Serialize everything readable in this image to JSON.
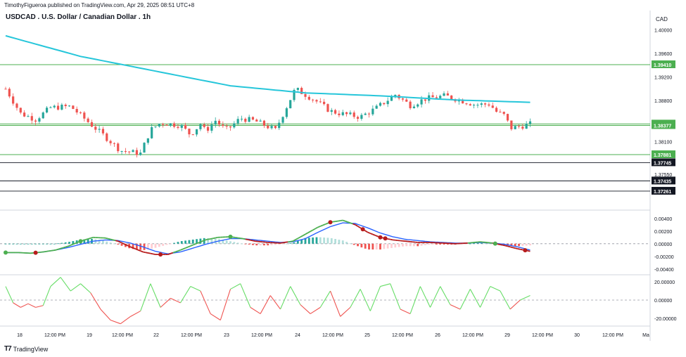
{
  "header": {
    "publisher": "TimothyFigueroa published on TradingView.com, Apr 29, 2025 08:51 UTC+8",
    "symbol": "USDCAD . U.S. Dollar / Canadian Dollar . 1h",
    "currency": "CAD"
  },
  "footer": {
    "brand": "TradingView"
  },
  "chart_data": [
    {
      "type": "candlestick",
      "title": "USDCAD . U.S. Dollar / Canadian Dollar . 1h",
      "ylim": [
        1.3695,
        1.4015
      ],
      "y_ticks": [
        "1.40000",
        "1.39600",
        "1.39200",
        "1.38800",
        "1.38100",
        "1.37550"
      ],
      "x_ticks": [
        "18",
        "12:00 PM",
        "19",
        "12:00 PM",
        "22",
        "12:00 PM",
        "23",
        "12:00 PM",
        "24",
        "12:00 PM",
        "25",
        "12:00 PM",
        "26",
        "12:00 PM",
        "29",
        "12:00 PM",
        "30",
        "12:00 PM",
        "Ma"
      ],
      "colors": {
        "up": "#26a69a",
        "down": "#ef5350",
        "ma": "#26c6da",
        "level_green": "#4caf50",
        "level_black": "#131722"
      },
      "candle_count": 140,
      "close_anchors": [
        [
          0,
          1.39
        ],
        [
          6,
          1.3858
        ],
        [
          12,
          1.3848
        ],
        [
          18,
          1.3868
        ],
        [
          26,
          1.387
        ],
        [
          34,
          1.384
        ],
        [
          40,
          1.3818
        ],
        [
          46,
          1.3795
        ],
        [
          54,
          1.379
        ],
        [
          58,
          1.383
        ],
        [
          62,
          1.3842
        ],
        [
          70,
          1.3838
        ],
        [
          74,
          1.3822
        ],
        [
          78,
          1.384
        ],
        [
          80,
          1.3828
        ],
        [
          84,
          1.3846
        ],
        [
          88,
          1.383
        ],
        [
          90,
          1.3835
        ],
        [
          94,
          1.385
        ],
        [
          100,
          1.3845
        ],
        [
          108,
          1.383
        ],
        [
          112,
          1.3865
        ],
        [
          116,
          1.39
        ],
        [
          124,
          1.388
        ],
        [
          130,
          1.3862
        ],
        [
          134,
          1.3858
        ],
        [
          142,
          1.3852
        ],
        [
          148,
          1.3866
        ],
        [
          156,
          1.389
        ],
        [
          162,
          1.3872
        ],
        [
          168,
          1.3883
        ],
        [
          176,
          1.3888
        ],
        [
          184,
          1.3878
        ],
        [
          188,
          1.3873
        ],
        [
          194,
          1.3874
        ],
        [
          196,
          1.3862
        ],
        [
          200,
          1.3854
        ],
        [
          202,
          1.3833
        ],
        [
          206,
          1.3836
        ],
        [
          210,
          1.384
        ]
      ],
      "moving_average": [
        [
          0,
          1.399
        ],
        [
          30,
          1.3955
        ],
        [
          60,
          1.393
        ],
        [
          90,
          1.3905
        ],
        [
          120,
          1.3893
        ],
        [
          150,
          1.3888
        ],
        [
          180,
          1.3881
        ],
        [
          210,
          1.3877
        ]
      ],
      "levels": [
        {
          "label": "1.39410",
          "value": 1.3941,
          "color": "green"
        },
        {
          "label": "1.38402",
          "value": 1.38402,
          "color": "green"
        },
        {
          "label": "1.38377",
          "value": 1.38377,
          "color": "green"
        },
        {
          "label": "1.37881",
          "value": 1.37881,
          "color": "green"
        },
        {
          "label": "1.37745",
          "value": 1.37745,
          "color": "black"
        },
        {
          "label": "1.37435",
          "value": 1.37435,
          "color": "black"
        },
        {
          "label": "1.37261",
          "value": 1.37261,
          "color": "black"
        }
      ]
    },
    {
      "type": "histogram+line",
      "y_ticks": [
        "0.00400",
        "0.00200",
        "0.00000",
        "-0.00200",
        "-0.00400"
      ],
      "ylim": [
        -0.0048,
        0.0052
      ],
      "series": [
        {
          "color": "#4caf50",
          "values": [
            [
              0,
              -0.0014
            ],
            [
              5,
              -0.0014
            ],
            [
              10,
              -0.0015
            ],
            [
              15,
              -0.0013
            ],
            [
              20,
              -0.001
            ],
            [
              25,
              -0.0004
            ],
            [
              30,
              0.0004
            ],
            [
              35,
              0.001
            ],
            [
              40,
              0.0009
            ],
            [
              45,
              0.0004
            ],
            [
              50,
              -0.0005
            ],
            [
              55,
              -0.0013
            ],
            [
              60,
              -0.0017
            ],
            [
              65,
              -0.0017
            ],
            [
              70,
              -0.001
            ],
            [
              75,
              -0.0002
            ],
            [
              80,
              0.0006
            ],
            [
              85,
              0.001
            ],
            [
              90,
              0.0011
            ],
            [
              95,
              0.0008
            ],
            [
              100,
              0.0004
            ],
            [
              105,
              0.0002
            ],
            [
              110,
              0.0001
            ],
            [
              115,
              0.0004
            ],
            [
              120,
              0.0015
            ],
            [
              125,
              0.0026
            ],
            [
              130,
              0.0034
            ],
            [
              135,
              0.0037
            ],
            [
              140,
              0.003
            ],
            [
              145,
              0.0018
            ],
            [
              150,
              0.001
            ],
            [
              155,
              0.0006
            ],
            [
              160,
              0.0004
            ],
            [
              165,
              0.0002
            ],
            [
              170,
              0.0002
            ],
            [
              175,
              0.0001
            ],
            [
              180,
              0.0
            ],
            [
              185,
              0.0001
            ],
            [
              190,
              0.0003
            ],
            [
              195,
              0.0001
            ],
            [
              200,
              -0.0003
            ],
            [
              205,
              -0.0008
            ],
            [
              210,
              -0.0012
            ]
          ]
        },
        {
          "color": "#2962ff",
          "values": [
            [
              0,
              -0.0014
            ],
            [
              5,
              -0.0014
            ],
            [
              10,
              -0.0015
            ],
            [
              15,
              -0.0013
            ],
            [
              20,
              -0.001
            ],
            [
              25,
              -0.0006
            ],
            [
              30,
              -0.0001
            ],
            [
              35,
              0.0004
            ],
            [
              40,
              0.0006
            ],
            [
              45,
              0.0005
            ],
            [
              50,
              0.0001
            ],
            [
              55,
              -0.0005
            ],
            [
              60,
              -0.0012
            ],
            [
              65,
              -0.0016
            ],
            [
              70,
              -0.0013
            ],
            [
              75,
              -0.0007
            ],
            [
              80,
              -0.0001
            ],
            [
              85,
              0.0004
            ],
            [
              90,
              0.0008
            ],
            [
              95,
              0.0008
            ],
            [
              100,
              0.0006
            ],
            [
              105,
              0.0004
            ],
            [
              110,
              0.0002
            ],
            [
              115,
              0.0003
            ],
            [
              120,
              0.0008
            ],
            [
              125,
              0.0018
            ],
            [
              130,
              0.0027
            ],
            [
              135,
              0.0033
            ],
            [
              140,
              0.0032
            ],
            [
              145,
              0.0025
            ],
            [
              150,
              0.0017
            ],
            [
              155,
              0.0011
            ],
            [
              160,
              0.0007
            ],
            [
              165,
              0.0005
            ],
            [
              170,
              0.0003
            ],
            [
              175,
              0.0002
            ],
            [
              180,
              0.0001
            ],
            [
              185,
              0.0001
            ],
            [
              190,
              0.0002
            ],
            [
              195,
              0.0001
            ],
            [
              200,
              -0.0001
            ],
            [
              205,
              -0.0005
            ],
            [
              210,
              -0.001
            ]
          ]
        },
        {
          "color": "#b71c1c",
          "values": [
            [
              0,
              -0.0014
            ],
            [
              5,
              -0.0014
            ],
            [
              10,
              -0.0015
            ],
            [
              15,
              -0.0013
            ],
            [
              20,
              -0.001
            ],
            [
              25,
              -0.0004
            ],
            [
              30,
              0.0004
            ],
            [
              35,
              0.001
            ],
            [
              40,
              0.0009
            ],
            [
              45,
              0.0004
            ],
            [
              50,
              -0.0005
            ],
            [
              55,
              -0.0013
            ],
            [
              60,
              -0.0017
            ],
            [
              65,
              -0.0017
            ],
            [
              70,
              -0.001
            ],
            [
              75,
              -0.0002
            ],
            [
              80,
              0.0006
            ],
            [
              85,
              0.001
            ],
            [
              90,
              0.0011
            ],
            [
              95,
              0.0008
            ],
            [
              100,
              0.0004
            ],
            [
              105,
              0.0002
            ],
            [
              110,
              0.0001
            ],
            [
              115,
              0.0004
            ],
            [
              120,
              0.0015
            ],
            [
              125,
              0.0026
            ],
            [
              130,
              0.0034
            ],
            [
              135,
              0.0037
            ],
            [
              140,
              0.003
            ],
            [
              145,
              0.0018
            ],
            [
              150,
              0.001
            ],
            [
              155,
              0.0006
            ],
            [
              160,
              0.0004
            ],
            [
              165,
              0.0002
            ],
            [
              170,
              0.0002
            ],
            [
              175,
              0.0001
            ],
            [
              180,
              0.0
            ],
            [
              185,
              0.0001
            ],
            [
              190,
              0.0003
            ],
            [
              195,
              0.0001
            ],
            [
              200,
              -0.0003
            ],
            [
              205,
              -0.0008
            ],
            [
              210,
              -0.0012
            ]
          ]
        }
      ],
      "histogram_colors": {
        "up_strong": "#26a69a",
        "up_weak": "#b2dfdb",
        "down_strong": "#ef5350",
        "down_weak": "#ffcdd2"
      },
      "signals": [
        {
          "x": 0,
          "color": "green"
        },
        {
          "x": 12,
          "color": "red"
        },
        {
          "x": 30,
          "color": "green"
        },
        {
          "x": 62,
          "color": "red"
        },
        {
          "x": 90,
          "color": "green"
        },
        {
          "x": 130,
          "color": "red"
        },
        {
          "x": 143,
          "color": "red"
        },
        {
          "x": 150,
          "color": "red"
        },
        {
          "x": 152,
          "color": "red"
        },
        {
          "x": 196,
          "color": "green"
        },
        {
          "x": 208,
          "color": "red"
        }
      ]
    },
    {
      "type": "line",
      "y_ticks": [
        "20.00000",
        "0.00000",
        "-20.00000"
      ],
      "ylim": [
        -27,
        27
      ],
      "series": [
        {
          "colors": {
            "positive": "#66dd66",
            "negative": "#ef5350"
          },
          "values": [
            [
              0,
              15
            ],
            [
              3,
              -3
            ],
            [
              6,
              -8
            ],
            [
              9,
              -4
            ],
            [
              12,
              -8
            ],
            [
              15,
              -6
            ],
            [
              18,
              15
            ],
            [
              22,
              25
            ],
            [
              26,
              10
            ],
            [
              30,
              18
            ],
            [
              34,
              8
            ],
            [
              38,
              -10
            ],
            [
              42,
              -22
            ],
            [
              46,
              -26
            ],
            [
              50,
              -18
            ],
            [
              54,
              -12
            ],
            [
              58,
              18
            ],
            [
              62,
              -8
            ],
            [
              66,
              2
            ],
            [
              70,
              -3
            ],
            [
              74,
              15
            ],
            [
              78,
              10
            ],
            [
              82,
              -15
            ],
            [
              86,
              -22
            ],
            [
              90,
              12
            ],
            [
              94,
              18
            ],
            [
              98,
              -8
            ],
            [
              102,
              -15
            ],
            [
              106,
              5
            ],
            [
              110,
              -10
            ],
            [
              114,
              15
            ],
            [
              118,
              -5
            ],
            [
              122,
              -15
            ],
            [
              126,
              -8
            ],
            [
              130,
              10
            ],
            [
              134,
              -18
            ],
            [
              138,
              -8
            ],
            [
              142,
              12
            ],
            [
              146,
              -12
            ],
            [
              150,
              15
            ],
            [
              154,
              18
            ],
            [
              158,
              -10
            ],
            [
              162,
              -15
            ],
            [
              166,
              15
            ],
            [
              170,
              -8
            ],
            [
              174,
              15
            ],
            [
              178,
              -5
            ],
            [
              182,
              -10
            ],
            [
              186,
              12
            ],
            [
              190,
              -8
            ],
            [
              194,
              15
            ],
            [
              198,
              10
            ],
            [
              202,
              -10
            ],
            [
              206,
              0
            ],
            [
              210,
              5
            ]
          ]
        }
      ]
    }
  ]
}
